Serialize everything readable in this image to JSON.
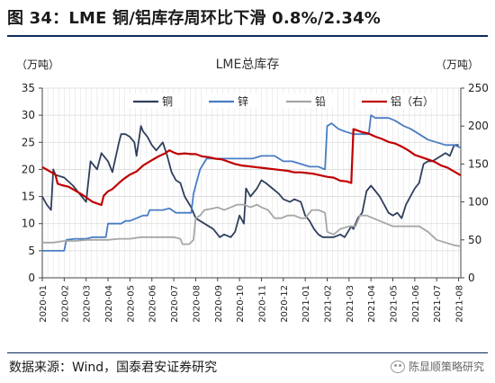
{
  "header": {
    "title": "图 34：LME 铜/铝库存周环比下滑 0.8%/2.34%"
  },
  "footer": {
    "source": "数据来源：Wind，国泰君安证券研究",
    "watermark": "陈显顺策略研究"
  },
  "chart_data": {
    "type": "line",
    "title": "LME总库存",
    "left_unit": "（万吨）",
    "right_unit": "（万吨）",
    "x_ticks": [
      "2020-01",
      "2020-02",
      "2020-03",
      "2020-04",
      "2020-05",
      "2020-06",
      "2020-07",
      "2020-08",
      "2020-09",
      "2020-10",
      "2020-11",
      "2020-12",
      "2021-01",
      "2021-02",
      "2021-03",
      "2021-04",
      "2021-05",
      "2021-06",
      "2021-07",
      "2021-08"
    ],
    "x_range": [
      0,
      19.1
    ],
    "left_axis": {
      "range": [
        0,
        35
      ],
      "ticks": [
        0,
        5,
        10,
        15,
        20,
        25,
        30,
        35
      ]
    },
    "right_axis": {
      "range": [
        0,
        250
      ],
      "ticks": [
        0,
        50,
        100,
        150,
        200,
        250
      ]
    },
    "grid": true,
    "legend_position": "top",
    "series": [
      {
        "name": "铜",
        "axis": "left",
        "color": "#2f3f5c",
        "points": [
          [
            0.0,
            15.0
          ],
          [
            0.2,
            13.5
          ],
          [
            0.4,
            12.5
          ],
          [
            0.5,
            20.0
          ],
          [
            0.6,
            19.0
          ],
          [
            1.0,
            18.5
          ],
          [
            1.4,
            17.0
          ],
          [
            1.8,
            15.0
          ],
          [
            2.0,
            14.0
          ],
          [
            2.2,
            21.5
          ],
          [
            2.5,
            20.0
          ],
          [
            2.7,
            23.0
          ],
          [
            3.0,
            21.5
          ],
          [
            3.2,
            19.5
          ],
          [
            3.5,
            25.0
          ],
          [
            3.6,
            26.5
          ],
          [
            3.8,
            26.5
          ],
          [
            4.0,
            26.0
          ],
          [
            4.2,
            25.0
          ],
          [
            4.3,
            22.5
          ],
          [
            4.5,
            28.0
          ],
          [
            4.6,
            27.0
          ],
          [
            4.8,
            26.0
          ],
          [
            5.0,
            24.5
          ],
          [
            5.2,
            23.5
          ],
          [
            5.5,
            25.0
          ],
          [
            5.7,
            22.5
          ],
          [
            5.9,
            19.5
          ],
          [
            6.1,
            18.0
          ],
          [
            6.3,
            17.5
          ],
          [
            6.5,
            15.0
          ],
          [
            6.8,
            13.0
          ],
          [
            7.0,
            11.0
          ],
          [
            7.4,
            10.0
          ],
          [
            7.8,
            9.0
          ],
          [
            8.1,
            7.5
          ],
          [
            8.3,
            8.0
          ],
          [
            8.6,
            7.5
          ],
          [
            8.8,
            8.5
          ],
          [
            9.0,
            11.5
          ],
          [
            9.2,
            10.0
          ],
          [
            9.3,
            16.5
          ],
          [
            9.5,
            15.0
          ],
          [
            9.8,
            16.5
          ],
          [
            10.0,
            18.0
          ],
          [
            10.2,
            17.5
          ],
          [
            10.5,
            16.5
          ],
          [
            10.8,
            15.5
          ],
          [
            11.0,
            14.5
          ],
          [
            11.3,
            14.0
          ],
          [
            11.5,
            14.5
          ],
          [
            11.8,
            14.0
          ],
          [
            12.0,
            11.5
          ],
          [
            12.2,
            10.5
          ],
          [
            12.4,
            9.0
          ],
          [
            12.6,
            8.0
          ],
          [
            12.8,
            7.5
          ],
          [
            13.0,
            7.5
          ],
          [
            13.3,
            7.5
          ],
          [
            13.6,
            8.0
          ],
          [
            13.8,
            7.5
          ],
          [
            14.1,
            9.5
          ],
          [
            14.2,
            9.0
          ],
          [
            14.4,
            11.0
          ],
          [
            14.6,
            12.0
          ],
          [
            14.8,
            16.0
          ],
          [
            15.0,
            17.0
          ],
          [
            15.2,
            16.0
          ],
          [
            15.4,
            15.0
          ],
          [
            15.6,
            13.5
          ],
          [
            15.8,
            12.0
          ],
          [
            16.0,
            11.5
          ],
          [
            16.2,
            12.0
          ],
          [
            16.4,
            11.0
          ],
          [
            16.6,
            13.5
          ],
          [
            16.8,
            15.0
          ],
          [
            17.0,
            16.5
          ],
          [
            17.2,
            17.5
          ],
          [
            17.4,
            21.0
          ],
          [
            17.6,
            21.5
          ],
          [
            17.8,
            21.5
          ],
          [
            18.0,
            22.0
          ],
          [
            18.2,
            22.5
          ],
          [
            18.4,
            23.0
          ],
          [
            18.6,
            22.5
          ],
          [
            18.8,
            24.5
          ],
          [
            19.0,
            24.5
          ]
        ]
      },
      {
        "name": "锌",
        "axis": "left",
        "color": "#4a7dc4",
        "points": [
          [
            0.0,
            5.0
          ],
          [
            0.6,
            5.0
          ],
          [
            1.0,
            5.0
          ],
          [
            1.1,
            7.0
          ],
          [
            1.5,
            7.2
          ],
          [
            2.0,
            7.2
          ],
          [
            2.3,
            7.5
          ],
          [
            2.6,
            7.5
          ],
          [
            2.9,
            7.5
          ],
          [
            3.0,
            10.0
          ],
          [
            3.6,
            10.0
          ],
          [
            3.8,
            10.5
          ],
          [
            4.0,
            10.5
          ],
          [
            4.3,
            11.0
          ],
          [
            4.6,
            11.5
          ],
          [
            4.8,
            11.5
          ],
          [
            4.9,
            12.5
          ],
          [
            5.2,
            12.5
          ],
          [
            5.5,
            12.5
          ],
          [
            5.8,
            12.8
          ],
          [
            6.1,
            12.0
          ],
          [
            6.5,
            12.0
          ],
          [
            6.8,
            12.0
          ],
          [
            6.9,
            15.5
          ],
          [
            7.0,
            17.0
          ],
          [
            7.2,
            20.0
          ],
          [
            7.5,
            22.0
          ],
          [
            7.8,
            22.0
          ],
          [
            8.0,
            22.0
          ],
          [
            8.3,
            22.0
          ],
          [
            8.6,
            22.0
          ],
          [
            9.0,
            22.0
          ],
          [
            9.3,
            22.0
          ],
          [
            9.6,
            22.0
          ],
          [
            10.0,
            22.5
          ],
          [
            10.4,
            22.5
          ],
          [
            10.6,
            22.5
          ],
          [
            11.0,
            21.5
          ],
          [
            11.4,
            21.5
          ],
          [
            11.8,
            21.0
          ],
          [
            12.2,
            20.5
          ],
          [
            12.6,
            20.5
          ],
          [
            12.9,
            20.0
          ],
          [
            13.0,
            28.0
          ],
          [
            13.2,
            28.5
          ],
          [
            13.5,
            27.5
          ],
          [
            13.8,
            27.0
          ],
          [
            14.2,
            26.5
          ],
          [
            14.6,
            26.5
          ],
          [
            14.9,
            26.5
          ],
          [
            15.0,
            30.0
          ],
          [
            15.2,
            29.5
          ],
          [
            15.5,
            29.5
          ],
          [
            15.8,
            29.5
          ],
          [
            16.1,
            29.0
          ],
          [
            16.5,
            28.0
          ],
          [
            16.8,
            27.5
          ],
          [
            17.2,
            26.5
          ],
          [
            17.6,
            25.5
          ],
          [
            18.0,
            25.0
          ],
          [
            18.4,
            24.5
          ],
          [
            18.8,
            24.5
          ],
          [
            19.1,
            24.0
          ]
        ]
      },
      {
        "name": "铅",
        "axis": "left",
        "color": "#a6a6a6",
        "points": [
          [
            0.0,
            6.5
          ],
          [
            0.5,
            6.5
          ],
          [
            1.0,
            6.8
          ],
          [
            1.5,
            6.8
          ],
          [
            2.0,
            7.0
          ],
          [
            2.5,
            7.0
          ],
          [
            3.0,
            7.0
          ],
          [
            3.5,
            7.2
          ],
          [
            4.0,
            7.2
          ],
          [
            4.5,
            7.5
          ],
          [
            5.0,
            7.5
          ],
          [
            5.5,
            7.5
          ],
          [
            6.0,
            7.5
          ],
          [
            6.3,
            7.2
          ],
          [
            6.4,
            6.2
          ],
          [
            6.7,
            6.2
          ],
          [
            6.9,
            7.0
          ],
          [
            7.0,
            11.0
          ],
          [
            7.2,
            11.5
          ],
          [
            7.4,
            12.5
          ],
          [
            7.8,
            12.8
          ],
          [
            8.0,
            13.0
          ],
          [
            8.3,
            12.5
          ],
          [
            8.6,
            13.0
          ],
          [
            8.9,
            13.5
          ],
          [
            9.2,
            13.5
          ],
          [
            9.5,
            13.0
          ],
          [
            9.8,
            13.5
          ],
          [
            10.0,
            13.0
          ],
          [
            10.3,
            12.5
          ],
          [
            10.6,
            11.0
          ],
          [
            10.9,
            11.0
          ],
          [
            11.2,
            11.5
          ],
          [
            11.5,
            11.5
          ],
          [
            11.8,
            11.0
          ],
          [
            12.0,
            11.0
          ],
          [
            12.3,
            12.5
          ],
          [
            12.6,
            12.5
          ],
          [
            12.9,
            12.0
          ],
          [
            13.0,
            8.5
          ],
          [
            13.3,
            8.0
          ],
          [
            13.6,
            9.0
          ],
          [
            14.0,
            9.5
          ],
          [
            14.3,
            9.5
          ],
          [
            14.5,
            11.5
          ],
          [
            14.8,
            11.5
          ],
          [
            15.1,
            11.0
          ],
          [
            15.4,
            10.5
          ],
          [
            15.7,
            10.0
          ],
          [
            16.0,
            9.5
          ],
          [
            16.4,
            9.5
          ],
          [
            16.8,
            9.5
          ],
          [
            17.2,
            9.5
          ],
          [
            17.6,
            8.5
          ],
          [
            18.0,
            7.0
          ],
          [
            18.4,
            6.5
          ],
          [
            18.8,
            6.0
          ],
          [
            19.1,
            5.8
          ]
        ]
      },
      {
        "name": "铝（右）",
        "axis": "right",
        "color": "#c00000",
        "points": [
          [
            0.0,
            146.0
          ],
          [
            0.3,
            141.0
          ],
          [
            0.6,
            136.0
          ],
          [
            0.7,
            124.0
          ],
          [
            0.9,
            122.0
          ],
          [
            1.2,
            120.0
          ],
          [
            1.5,
            115.0
          ],
          [
            1.8,
            110.0
          ],
          [
            2.0,
            106.0
          ],
          [
            2.3,
            100.0
          ],
          [
            2.5,
            98.0
          ],
          [
            2.7,
            96.0
          ],
          [
            2.8,
            108.0
          ],
          [
            3.0,
            114.0
          ],
          [
            3.2,
            117.0
          ],
          [
            3.5,
            125.0
          ],
          [
            3.7,
            130.0
          ],
          [
            4.0,
            136.0
          ],
          [
            4.3,
            140.0
          ],
          [
            4.6,
            148.0
          ],
          [
            5.0,
            155.0
          ],
          [
            5.3,
            160.0
          ],
          [
            5.6,
            164.0
          ],
          [
            5.8,
            168.0
          ],
          [
            6.0,
            165.0
          ],
          [
            6.2,
            163.0
          ],
          [
            6.5,
            164.0
          ],
          [
            6.8,
            163.0
          ],
          [
            7.0,
            163.0
          ],
          [
            7.3,
            160.0
          ],
          [
            7.6,
            159.0
          ],
          [
            7.9,
            157.0
          ],
          [
            8.2,
            156.0
          ],
          [
            8.5,
            153.0
          ],
          [
            8.8,
            150.0
          ],
          [
            9.1,
            148.0
          ],
          [
            9.4,
            147.0
          ],
          [
            9.7,
            146.0
          ],
          [
            10.0,
            145.0
          ],
          [
            10.3,
            144.0
          ],
          [
            10.6,
            143.0
          ],
          [
            10.9,
            142.0
          ],
          [
            11.2,
            141.0
          ],
          [
            11.5,
            139.0
          ],
          [
            11.8,
            139.0
          ],
          [
            12.1,
            138.0
          ],
          [
            12.4,
            137.0
          ],
          [
            12.7,
            135.0
          ],
          [
            13.0,
            133.0
          ],
          [
            13.3,
            132.0
          ],
          [
            13.6,
            128.0
          ],
          [
            13.9,
            127.0
          ],
          [
            14.1,
            125.0
          ],
          [
            14.2,
            196.0
          ],
          [
            14.3,
            195.0
          ],
          [
            14.6,
            192.0
          ],
          [
            14.9,
            190.0
          ],
          [
            15.2,
            186.0
          ],
          [
            15.5,
            183.0
          ],
          [
            15.8,
            179.0
          ],
          [
            16.1,
            177.0
          ],
          [
            16.4,
            173.0
          ],
          [
            16.7,
            168.0
          ],
          [
            17.0,
            162.0
          ],
          [
            17.3,
            159.0
          ],
          [
            17.6,
            156.0
          ],
          [
            17.9,
            153.0
          ],
          [
            18.2,
            148.0
          ],
          [
            18.5,
            145.0
          ],
          [
            18.8,
            140.0
          ],
          [
            19.1,
            135.0
          ]
        ]
      }
    ]
  }
}
